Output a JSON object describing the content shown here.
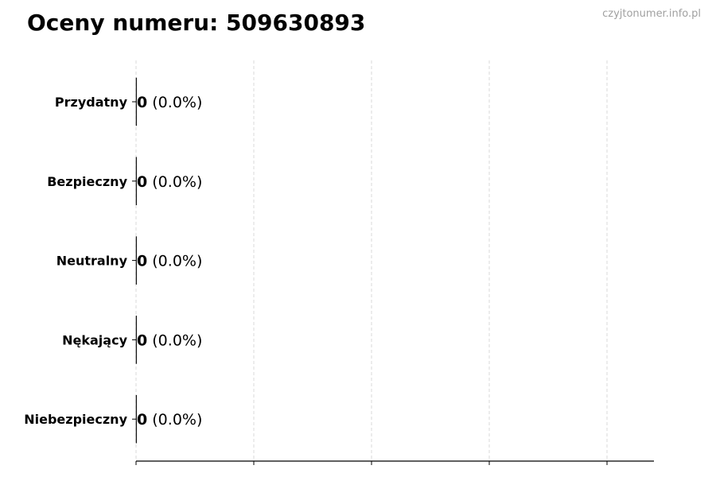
{
  "title": "Oceny numeru: 509630893",
  "watermark": "czyjtonumer.info.pl",
  "chart_data": {
    "type": "bar",
    "orientation": "horizontal",
    "title": "Oceny numeru: 509630893",
    "categories": [
      "Przydatny",
      "Bezpieczny",
      "Neutralny",
      "Nękający",
      "Niebezpieczny"
    ],
    "values": [
      0,
      0,
      0,
      0,
      0
    ],
    "percent_labels": [
      "(0.0%)",
      "(0.0%)",
      "(0.0%)",
      "(0.0%)",
      "(0.0%)"
    ],
    "count_labels": [
      "0",
      "0",
      "0",
      "0",
      "0"
    ],
    "xlabel": "",
    "ylabel": "",
    "x_tick_labels": [],
    "grid": "vertical dashed",
    "legend": "none",
    "colors": {
      "grid": "#d9d9d9",
      "axis": "#000000",
      "bar_edge": "#000000"
    }
  }
}
